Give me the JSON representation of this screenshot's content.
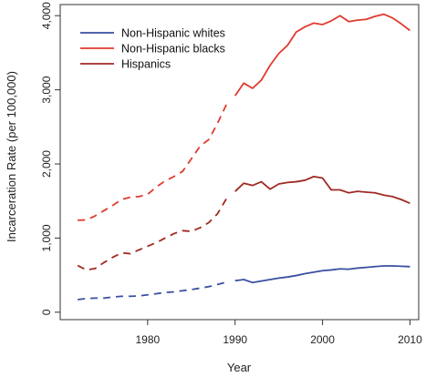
{
  "chart_data": {
    "type": "line",
    "title": "",
    "xlabel": "Year",
    "ylabel": "Incarceration Rate (per 100,000)",
    "xlim": [
      1970,
      2011
    ],
    "ylim": [
      -100,
      4150
    ],
    "x_ticks": [
      1980,
      1990,
      2000,
      2010
    ],
    "x_tick_labels": [
      "1980",
      "1990",
      "2000",
      "2010"
    ],
    "y_ticks": [
      0,
      1000,
      2000,
      3000,
      4000
    ],
    "y_tick_labels": [
      "0",
      "1,000",
      "2,000",
      "3,000",
      "4,000"
    ],
    "grid": false,
    "legend": "top-left",
    "line_style_note": "dashed before 1990, solid from 1990",
    "series": [
      {
        "name": "Non-Hispanic whites",
        "color": "#3a4fa0",
        "dashed": {
          "x": [
            1972,
            1973,
            1974,
            1975,
            1976,
            1977,
            1978,
            1979,
            1980,
            1981,
            1982,
            1983,
            1984,
            1985,
            1986,
            1987,
            1988,
            1989
          ],
          "y": [
            170,
            185,
            190,
            190,
            205,
            215,
            215,
            220,
            235,
            250,
            265,
            275,
            290,
            305,
            325,
            345,
            375,
            405
          ]
        },
        "solid": {
          "x": [
            1990,
            1991,
            1992,
            1993,
            1994,
            1995,
            1996,
            1997,
            1998,
            1999,
            2000,
            2001,
            2002,
            2003,
            2004,
            2005,
            2006,
            2007,
            2008,
            2009,
            2010
          ],
          "y": [
            425,
            440,
            400,
            420,
            440,
            460,
            475,
            495,
            520,
            540,
            560,
            570,
            585,
            580,
            595,
            605,
            615,
            625,
            625,
            620,
            615
          ]
        }
      },
      {
        "name": "Non-Hispanic blacks",
        "color": "#e03a2f",
        "dashed": {
          "x": [
            1972,
            1973,
            1974,
            1975,
            1976,
            1977,
            1978,
            1979,
            1980,
            1981,
            1982,
            1983,
            1984,
            1985,
            1986,
            1987,
            1988,
            1989
          ],
          "y": [
            1240,
            1245,
            1300,
            1370,
            1440,
            1520,
            1550,
            1560,
            1590,
            1690,
            1770,
            1830,
            1900,
            2070,
            2240,
            2330,
            2550,
            2800
          ]
        },
        "solid": {
          "x": [
            1990,
            1991,
            1992,
            1993,
            1994,
            1995,
            1996,
            1997,
            1998,
            1999,
            2000,
            2001,
            2002,
            2003,
            2004,
            2005,
            2006,
            2007,
            2008,
            2009,
            2010
          ],
          "y": [
            2920,
            3090,
            3020,
            3130,
            3330,
            3490,
            3600,
            3780,
            3850,
            3900,
            3880,
            3930,
            4000,
            3920,
            3940,
            3950,
            3990,
            4020,
            3970,
            3890,
            3800
          ]
        }
      },
      {
        "name": "Hispanics",
        "color": "#a02a22",
        "dashed": {
          "x": [
            1972,
            1973,
            1974,
            1975,
            1976,
            1977,
            1978,
            1979,
            1980,
            1981,
            1982,
            1983,
            1984,
            1985,
            1986,
            1987,
            1988,
            1989
          ],
          "y": [
            630,
            570,
            590,
            670,
            740,
            800,
            790,
            840,
            890,
            940,
            1000,
            1060,
            1100,
            1090,
            1140,
            1210,
            1330,
            1530
          ]
        },
        "solid": {
          "x": [
            1990,
            1991,
            1992,
            1993,
            1994,
            1995,
            1996,
            1997,
            1998,
            1999,
            2000,
            2001,
            2002,
            2003,
            2004,
            2005,
            2006,
            2007,
            2008,
            2009,
            2010
          ],
          "y": [
            1630,
            1740,
            1710,
            1760,
            1660,
            1730,
            1750,
            1760,
            1780,
            1830,
            1810,
            1650,
            1650,
            1610,
            1630,
            1620,
            1610,
            1580,
            1560,
            1520,
            1470
          ]
        }
      }
    ]
  }
}
